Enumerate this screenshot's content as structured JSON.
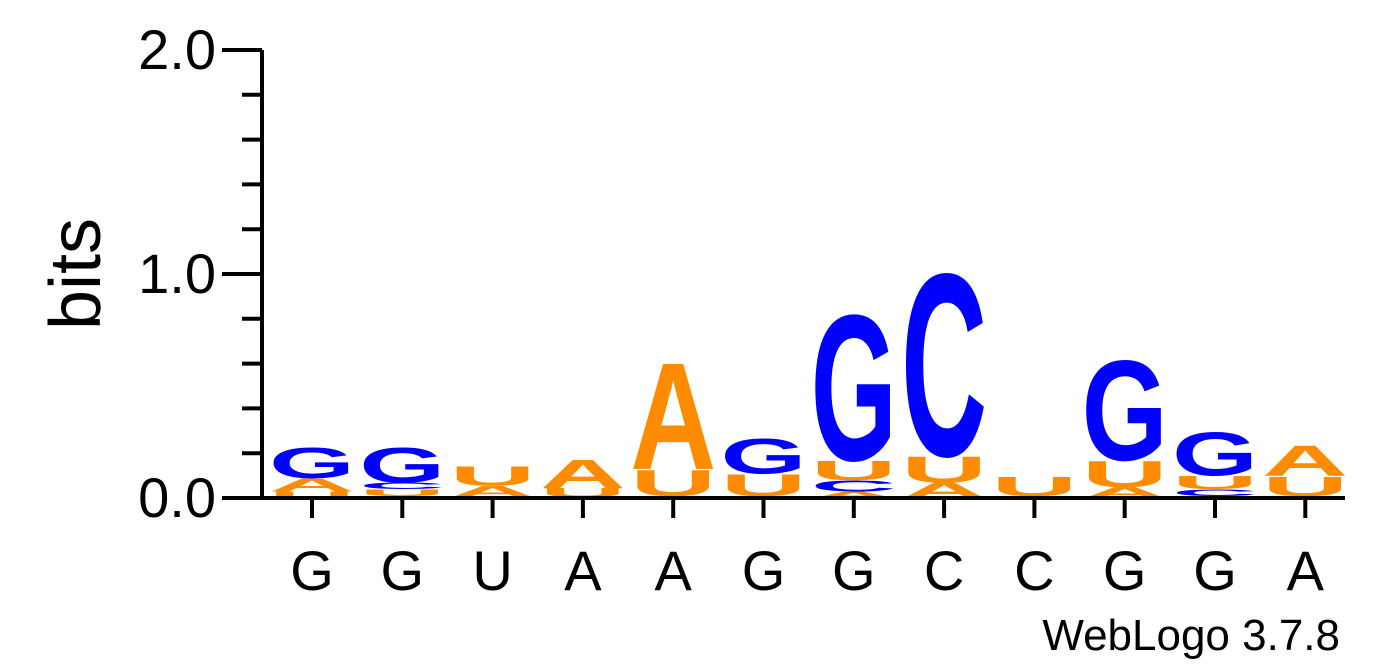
{
  "chart_data": {
    "type": "sequence-logo",
    "ylabel": "bits",
    "ylim": [
      0,
      2.0
    ],
    "yticks": [
      "0.0",
      "1.0",
      "2.0"
    ],
    "colors": {
      "A": "#ff8c00",
      "U": "#ff8c00",
      "G": "#0000ff",
      "C": "#0000ff"
    },
    "positions": [
      {
        "label": "G",
        "stack": [
          {
            "letter": "U",
            "bits": 0.03
          },
          {
            "letter": "A",
            "bits": 0.06
          },
          {
            "letter": "G",
            "bits": 0.14
          }
        ]
      },
      {
        "label": "G",
        "stack": [
          {
            "letter": "A",
            "bits": 0.01
          },
          {
            "letter": "U",
            "bits": 0.03
          },
          {
            "letter": "C",
            "bits": 0.03
          },
          {
            "letter": "G",
            "bits": 0.16
          }
        ]
      },
      {
        "label": "U",
        "stack": [
          {
            "letter": "C",
            "bits": 0.005
          },
          {
            "letter": "A",
            "bits": 0.05
          },
          {
            "letter": "U",
            "bits": 0.09
          }
        ]
      },
      {
        "label": "A",
        "stack": [
          {
            "letter": "C",
            "bits": 0.005
          },
          {
            "letter": "U",
            "bits": 0.04
          },
          {
            "letter": "A",
            "bits": 0.13
          }
        ]
      },
      {
        "label": "A",
        "stack": [
          {
            "letter": "C",
            "bits": 0.01
          },
          {
            "letter": "U",
            "bits": 0.12
          },
          {
            "letter": "A",
            "bits": 0.49
          }
        ]
      },
      {
        "label": "G",
        "stack": [
          {
            "letter": "C",
            "bits": 0.01
          },
          {
            "letter": "U",
            "bits": 0.1
          },
          {
            "letter": "G",
            "bits": 0.16
          }
        ]
      },
      {
        "label": "G",
        "stack": [
          {
            "letter": "A",
            "bits": 0.03
          },
          {
            "letter": "C",
            "bits": 0.05
          },
          {
            "letter": "U",
            "bits": 0.09
          },
          {
            "letter": "G",
            "bits": 0.67
          }
        ]
      },
      {
        "label": "C",
        "stack": [
          {
            "letter": "A",
            "bits": 0.07
          },
          {
            "letter": "U",
            "bits": 0.12
          },
          {
            "letter": "C",
            "bits": 0.84
          }
        ]
      },
      {
        "label": "C",
        "stack": [
          {
            "letter": "C",
            "bits": 0.01
          },
          {
            "letter": "U",
            "bits": 0.09
          }
        ]
      },
      {
        "label": "G",
        "stack": [
          {
            "letter": "A",
            "bits": 0.05
          },
          {
            "letter": "U",
            "bits": 0.12
          },
          {
            "letter": "G",
            "bits": 0.46
          }
        ]
      },
      {
        "label": "G",
        "stack": [
          {
            "letter": "A",
            "bits": 0.01
          },
          {
            "letter": "C",
            "bits": 0.03
          },
          {
            "letter": "U",
            "bits": 0.06
          },
          {
            "letter": "G",
            "bits": 0.2
          }
        ]
      },
      {
        "label": "A",
        "stack": [
          {
            "letter": "C",
            "bits": 0.01
          },
          {
            "letter": "U",
            "bits": 0.09
          },
          {
            "letter": "A",
            "bits": 0.14
          }
        ]
      }
    ],
    "footer": "WebLogo 3.7.8"
  }
}
